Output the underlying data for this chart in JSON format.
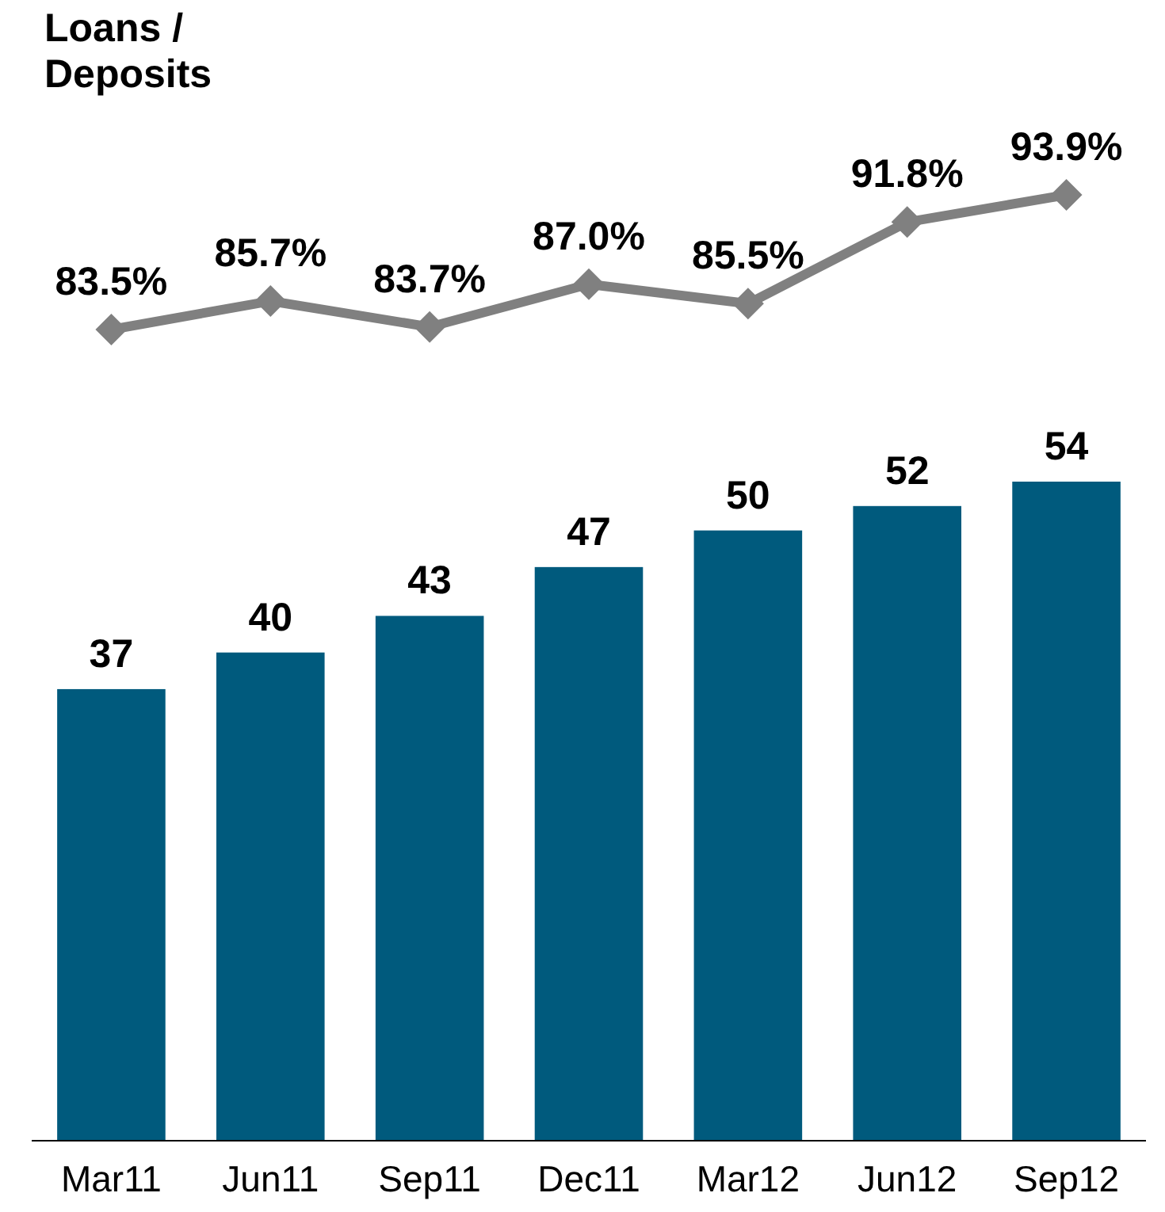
{
  "chart_data": [
    {
      "type": "line",
      "title": "Loans / Deposits",
      "categories": [
        null,
        null,
        null,
        null,
        null,
        null,
        null
      ],
      "series": [
        {
          "color": "#808080",
          "marker": "diamond",
          "value_labels": [
            "83.5%",
            "85.7%",
            "83.7%",
            "87.0%",
            "85.5%",
            "91.8%",
            "93.9%"
          ],
          "values": [
            83.5,
            85.7,
            83.7,
            87.0,
            85.5,
            91.8,
            93.9
          ]
        }
      ]
    },
    {
      "type": "bar",
      "categories": [
        "Mar11",
        "Jun11",
        "Sep11",
        "Dec11",
        "Mar12",
        "Jun12",
        "Sep12"
      ],
      "tick_labels": "x",
      "series": [
        {
          "color": "#005a7d",
          "values": [
            37,
            40,
            43,
            47,
            50,
            52,
            54
          ]
        }
      ],
      "data_labels": true
    }
  ]
}
